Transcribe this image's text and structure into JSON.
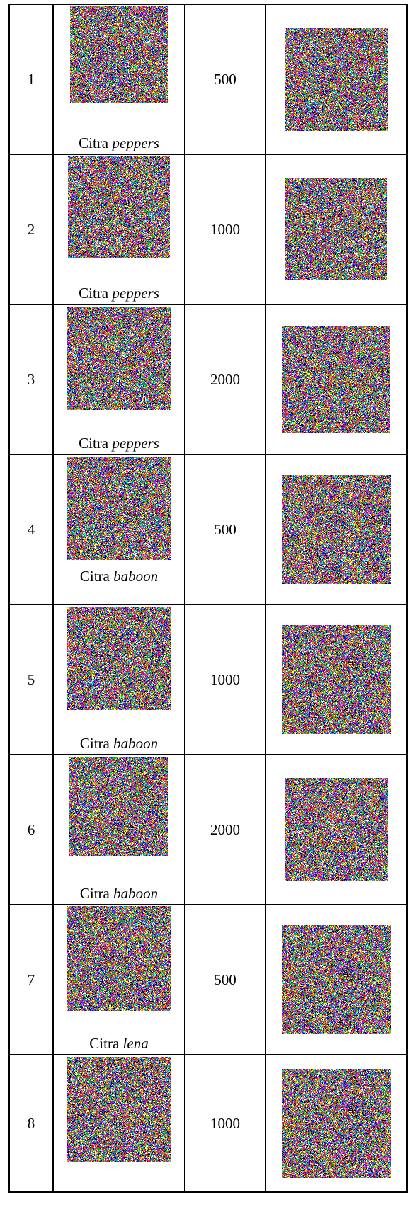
{
  "table": {
    "rows": [
      {
        "no": "1",
        "value": "500",
        "caption_prefix": "Citra",
        "caption_name": "peppers",
        "source_image_icon": "noise-image-icon",
        "result_image_icon": "noise-image-icon"
      },
      {
        "no": "2",
        "value": "1000",
        "caption_prefix": "Citra",
        "caption_name": "peppers",
        "source_image_icon": "noise-image-icon",
        "result_image_icon": "noise-image-icon"
      },
      {
        "no": "3",
        "value": "2000",
        "caption_prefix": "Citra",
        "caption_name": "peppers",
        "source_image_icon": "noise-image-icon",
        "result_image_icon": "noise-image-icon"
      },
      {
        "no": "4",
        "value": "500",
        "caption_prefix": "Citra",
        "caption_name": "baboon",
        "source_image_icon": "noise-image-icon",
        "result_image_icon": "noise-image-icon"
      },
      {
        "no": "5",
        "value": "1000",
        "caption_prefix": "Citra",
        "caption_name": "baboon",
        "source_image_icon": "noise-image-icon",
        "result_image_icon": "noise-image-icon"
      },
      {
        "no": "6",
        "value": "2000",
        "caption_prefix": "Citra",
        "caption_name": "baboon",
        "source_image_icon": "noise-image-icon",
        "result_image_icon": "noise-image-icon"
      },
      {
        "no": "7",
        "value": "500",
        "caption_prefix": "Citra",
        "caption_name": "lena",
        "source_image_icon": "noise-image-icon",
        "result_image_icon": "noise-image-icon"
      },
      {
        "no": "8",
        "value": "1000",
        "caption_prefix": "",
        "caption_name": "",
        "source_image_icon": "noise-image-icon",
        "result_image_icon": "noise-image-icon"
      }
    ]
  }
}
